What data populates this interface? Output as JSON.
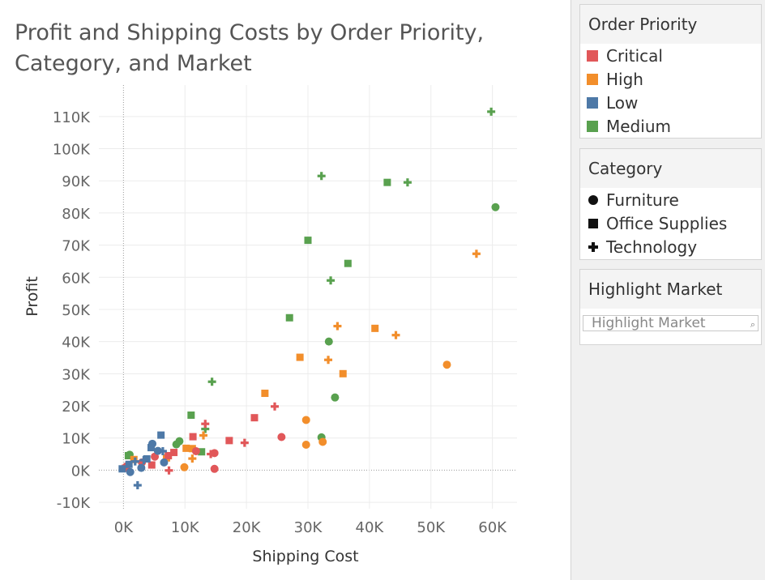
{
  "chart_data": {
    "type": "scatter",
    "title": "Profit and Shipping Costs by Order Priority, Category, and Market",
    "xlabel": "Shipping Cost",
    "ylabel": "Profit",
    "xlim": [
      -4000,
      64000
    ],
    "ylim": [
      -12000,
      116000
    ],
    "x_ticks": [
      {
        "v": 0,
        "label": "0K"
      },
      {
        "v": 10000,
        "label": "10K"
      },
      {
        "v": 20000,
        "label": "20K"
      },
      {
        "v": 30000,
        "label": "30K"
      },
      {
        "v": 40000,
        "label": "40K"
      },
      {
        "v": 50000,
        "label": "50K"
      },
      {
        "v": 60000,
        "label": "60K"
      }
    ],
    "y_ticks": [
      {
        "v": -10000,
        "label": "-10K"
      },
      {
        "v": 0,
        "label": "0K"
      },
      {
        "v": 10000,
        "label": "10K"
      },
      {
        "v": 20000,
        "label": "20K"
      },
      {
        "v": 30000,
        "label": "30K"
      },
      {
        "v": 40000,
        "label": "40K"
      },
      {
        "v": 50000,
        "label": "50K"
      },
      {
        "v": 60000,
        "label": "60K"
      },
      {
        "v": 70000,
        "label": "70K"
      },
      {
        "v": 80000,
        "label": "80K"
      },
      {
        "v": 90000,
        "label": "90K"
      },
      {
        "v": 100000,
        "label": "100K"
      },
      {
        "v": 110000,
        "label": "110K"
      }
    ],
    "grid": true,
    "color_encoding": "Order Priority",
    "shape_encoding": "Category",
    "colors": {
      "Critical": "#e15759",
      "High": "#f28e2b",
      "Low": "#4e79a7",
      "Medium": "#59a14f"
    },
    "shapes": {
      "Furniture": "circle",
      "Office Supplies": "square",
      "Technology": "plus"
    },
    "points": [
      {
        "x": 59800,
        "y": 111500,
        "priority": "Medium",
        "category": "Technology"
      },
      {
        "x": 60500,
        "y": 81800,
        "priority": "Medium",
        "category": "Furniture"
      },
      {
        "x": 32200,
        "y": 91500,
        "priority": "Medium",
        "category": "Technology"
      },
      {
        "x": 42900,
        "y": 89500,
        "priority": "Medium",
        "category": "Office Supplies"
      },
      {
        "x": 46200,
        "y": 89500,
        "priority": "Medium",
        "category": "Technology"
      },
      {
        "x": 30000,
        "y": 71500,
        "priority": "Medium",
        "category": "Office Supplies"
      },
      {
        "x": 36500,
        "y": 64300,
        "priority": "Medium",
        "category": "Office Supplies"
      },
      {
        "x": 33700,
        "y": 59000,
        "priority": "Medium",
        "category": "Technology"
      },
      {
        "x": 27000,
        "y": 47400,
        "priority": "Medium",
        "category": "Office Supplies"
      },
      {
        "x": 33400,
        "y": 40000,
        "priority": "Medium",
        "category": "Furniture"
      },
      {
        "x": 34400,
        "y": 22600,
        "priority": "Medium",
        "category": "Furniture"
      },
      {
        "x": 14400,
        "y": 27500,
        "priority": "Medium",
        "category": "Technology"
      },
      {
        "x": 32200,
        "y": 10200,
        "priority": "Medium",
        "category": "Furniture"
      },
      {
        "x": 11000,
        "y": 17100,
        "priority": "Medium",
        "category": "Office Supplies"
      },
      {
        "x": 12700,
        "y": 5700,
        "priority": "Medium",
        "category": "Office Supplies"
      },
      {
        "x": 13300,
        "y": 12800,
        "priority": "Medium",
        "category": "Technology"
      },
      {
        "x": 9100,
        "y": 9000,
        "priority": "Medium",
        "category": "Furniture"
      },
      {
        "x": 8600,
        "y": 8000,
        "priority": "Medium",
        "category": "Furniture"
      },
      {
        "x": 1000,
        "y": 4800,
        "priority": "Medium",
        "category": "Furniture"
      },
      {
        "x": 800,
        "y": 4500,
        "priority": "Medium",
        "category": "Office Supplies"
      },
      {
        "x": 57400,
        "y": 67300,
        "priority": "High",
        "category": "Technology"
      },
      {
        "x": 52600,
        "y": 32800,
        "priority": "High",
        "category": "Furniture"
      },
      {
        "x": 34800,
        "y": 44800,
        "priority": "High",
        "category": "Technology"
      },
      {
        "x": 40900,
        "y": 44100,
        "priority": "High",
        "category": "Office Supplies"
      },
      {
        "x": 44300,
        "y": 42000,
        "priority": "High",
        "category": "Technology"
      },
      {
        "x": 28700,
        "y": 35100,
        "priority": "High",
        "category": "Office Supplies"
      },
      {
        "x": 33300,
        "y": 34300,
        "priority": "High",
        "category": "Technology"
      },
      {
        "x": 35700,
        "y": 30000,
        "priority": "High",
        "category": "Office Supplies"
      },
      {
        "x": 23000,
        "y": 23900,
        "priority": "High",
        "category": "Office Supplies"
      },
      {
        "x": 29700,
        "y": 15600,
        "priority": "High",
        "category": "Furniture"
      },
      {
        "x": 29700,
        "y": 7900,
        "priority": "High",
        "category": "Furniture"
      },
      {
        "x": 32400,
        "y": 8800,
        "priority": "High",
        "category": "Furniture"
      },
      {
        "x": 13000,
        "y": 10800,
        "priority": "High",
        "category": "Technology"
      },
      {
        "x": 10200,
        "y": 6800,
        "priority": "High",
        "category": "Office Supplies"
      },
      {
        "x": 11200,
        "y": 6700,
        "priority": "High",
        "category": "Office Supplies"
      },
      {
        "x": 9900,
        "y": 900,
        "priority": "High",
        "category": "Furniture"
      },
      {
        "x": 11200,
        "y": 3600,
        "priority": "High",
        "category": "Technology"
      },
      {
        "x": 1700,
        "y": 3300,
        "priority": "High",
        "category": "Office Supplies"
      },
      {
        "x": 7000,
        "y": 3800,
        "priority": "High",
        "category": "Office Supplies"
      },
      {
        "x": 24600,
        "y": 19800,
        "priority": "Critical",
        "category": "Technology"
      },
      {
        "x": 21300,
        "y": 16300,
        "priority": "Critical",
        "category": "Office Supplies"
      },
      {
        "x": 25700,
        "y": 10300,
        "priority": "Critical",
        "category": "Furniture"
      },
      {
        "x": 13300,
        "y": 14400,
        "priority": "Critical",
        "category": "Technology"
      },
      {
        "x": 11300,
        "y": 10400,
        "priority": "Critical",
        "category": "Office Supplies"
      },
      {
        "x": 17200,
        "y": 9200,
        "priority": "Critical",
        "category": "Office Supplies"
      },
      {
        "x": 19700,
        "y": 8500,
        "priority": "Critical",
        "category": "Technology"
      },
      {
        "x": 14800,
        "y": 5300,
        "priority": "Critical",
        "category": "Furniture"
      },
      {
        "x": 14200,
        "y": 5000,
        "priority": "Critical",
        "category": "Technology"
      },
      {
        "x": 14800,
        "y": 400,
        "priority": "Critical",
        "category": "Furniture"
      },
      {
        "x": 11800,
        "y": 5900,
        "priority": "Critical",
        "category": "Furniture"
      },
      {
        "x": 8200,
        "y": 5500,
        "priority": "Critical",
        "category": "Office Supplies"
      },
      {
        "x": 7300,
        "y": 4500,
        "priority": "Critical",
        "category": "Office Supplies"
      },
      {
        "x": 5100,
        "y": 4200,
        "priority": "Critical",
        "category": "Furniture"
      },
      {
        "x": 7400,
        "y": -100,
        "priority": "Critical",
        "category": "Technology"
      },
      {
        "x": 4600,
        "y": 1600,
        "priority": "Critical",
        "category": "Office Supplies"
      },
      {
        "x": 3000,
        "y": 2400,
        "priority": "Critical",
        "category": "Furniture"
      },
      {
        "x": 500,
        "y": 1200,
        "priority": "Critical",
        "category": "Furniture"
      },
      {
        "x": 300,
        "y": 600,
        "priority": "Critical",
        "category": "Office Supplies"
      },
      {
        "x": 6100,
        "y": 10900,
        "priority": "Low",
        "category": "Office Supplies"
      },
      {
        "x": 4700,
        "y": 8200,
        "priority": "Low",
        "category": "Furniture"
      },
      {
        "x": 4500,
        "y": 7000,
        "priority": "Low",
        "category": "Office Supplies"
      },
      {
        "x": 5600,
        "y": 6000,
        "priority": "Low",
        "category": "Furniture"
      },
      {
        "x": 6400,
        "y": 5900,
        "priority": "Low",
        "category": "Technology"
      },
      {
        "x": 3300,
        "y": 3100,
        "priority": "Low",
        "category": "Technology"
      },
      {
        "x": 2300,
        "y": -4700,
        "priority": "Low",
        "category": "Technology"
      },
      {
        "x": 2900,
        "y": 700,
        "priority": "Low",
        "category": "Furniture"
      },
      {
        "x": 6600,
        "y": 2400,
        "priority": "Low",
        "category": "Furniture"
      },
      {
        "x": 1100,
        "y": -600,
        "priority": "Low",
        "category": "Furniture"
      },
      {
        "x": 900,
        "y": 1800,
        "priority": "Low",
        "category": "Office Supplies"
      },
      {
        "x": -200,
        "y": 400,
        "priority": "Low",
        "category": "Office Supplies"
      },
      {
        "x": 1900,
        "y": 2700,
        "priority": "Low",
        "category": "Technology"
      },
      {
        "x": 3800,
        "y": 3500,
        "priority": "Low",
        "category": "Office Supplies"
      }
    ]
  },
  "legends": {
    "priority": {
      "title": "Order Priority",
      "items": [
        {
          "label": "Critical",
          "color": "#e15759"
        },
        {
          "label": "High",
          "color": "#f28e2b"
        },
        {
          "label": "Low",
          "color": "#4e79a7"
        },
        {
          "label": "Medium",
          "color": "#59a14f"
        }
      ]
    },
    "category": {
      "title": "Category",
      "items": [
        {
          "label": "Furniture",
          "shape": "circle"
        },
        {
          "label": "Office Supplies",
          "shape": "square"
        },
        {
          "label": "Technology",
          "shape": "plus"
        }
      ]
    },
    "highlight": {
      "title": "Highlight Market",
      "placeholder": "Highlight Market"
    }
  }
}
